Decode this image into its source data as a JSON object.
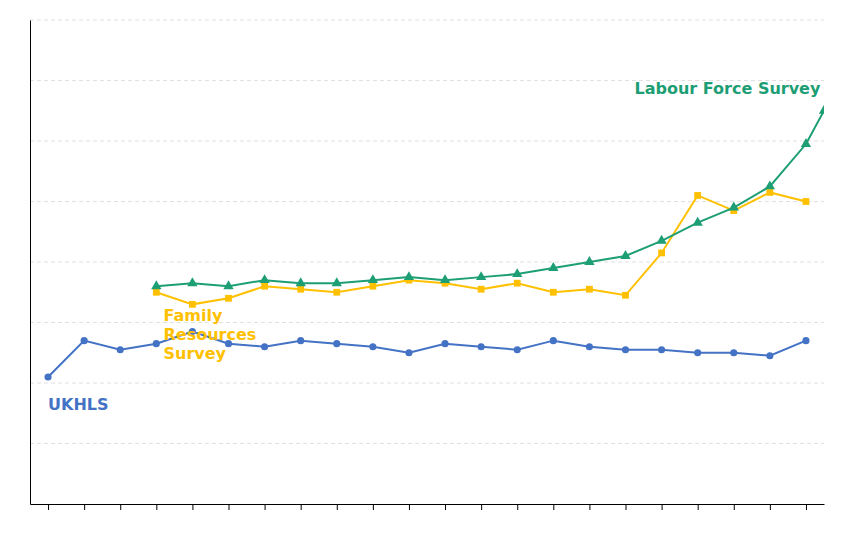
{
  "chart_data": {
    "type": "line",
    "xlim": [
      -0.5,
      21.5
    ],
    "xticks": [
      0,
      1,
      2,
      3,
      4,
      5,
      6,
      7,
      8,
      9,
      10,
      11,
      12,
      13,
      14,
      15,
      16,
      17,
      18,
      19,
      20,
      21
    ],
    "ylim": [
      0,
      16
    ],
    "yticks": [
      2,
      4,
      6,
      8,
      10,
      12,
      14,
      16
    ],
    "grid": true,
    "tick_labels": false,
    "series": [
      {
        "color": "#4472C4",
        "marker": "circle",
        "x": [
          0,
          1,
          2,
          3,
          4,
          5,
          6,
          7,
          8,
          9,
          10,
          11,
          12,
          13,
          14,
          15,
          16,
          17,
          18,
          19,
          20,
          21
        ],
        "values": [
          4.2,
          5.4,
          5.1,
          5.3,
          5.7,
          5.3,
          5.2,
          5.4,
          5.3,
          5.2,
          5.0,
          5.3,
          5.2,
          5.1,
          5.4,
          5.2,
          5.1,
          5.1,
          5.0,
          5.0,
          4.9,
          5.4
        ]
      },
      {
        "color": "#FFC000",
        "marker": "square",
        "x": [
          3,
          4,
          5,
          6,
          7,
          8,
          9,
          10,
          11,
          12,
          13,
          14,
          15,
          16,
          17,
          18,
          19,
          20,
          21
        ],
        "values": [
          7.0,
          6.6,
          6.8,
          7.2,
          7.1,
          7.0,
          7.2,
          7.4,
          7.3,
          7.1,
          7.3,
          7.0,
          7.1,
          6.9,
          8.3,
          10.2,
          9.7,
          10.3,
          10.0
        ]
      },
      {
        "color": "#1D9E74",
        "marker": "triangle",
        "x": [
          3,
          4,
          5,
          6,
          7,
          8,
          9,
          10,
          11,
          12,
          13,
          14,
          15,
          16,
          17,
          18,
          19,
          20,
          21,
          21.5
        ],
        "values": [
          7.2,
          7.3,
          7.2,
          7.4,
          7.3,
          7.3,
          7.4,
          7.5,
          7.4,
          7.5,
          7.6,
          7.8,
          8.0,
          8.2,
          8.7,
          9.3,
          9.8,
          10.5,
          11.9,
          13.0
        ]
      }
    ],
    "annotations": [
      {
        "text": "UKHLS",
        "x": 0.0,
        "y": 3.6,
        "color": "#4472C4"
      },
      {
        "text": "Family\nResources\nSurvey",
        "x": 3.2,
        "y": 6.55,
        "color": "#FFC000"
      },
      {
        "text": "Labour Force Survey",
        "x": 21.4,
        "y": 13.4,
        "color": "#1D9E74"
      }
    ]
  }
}
